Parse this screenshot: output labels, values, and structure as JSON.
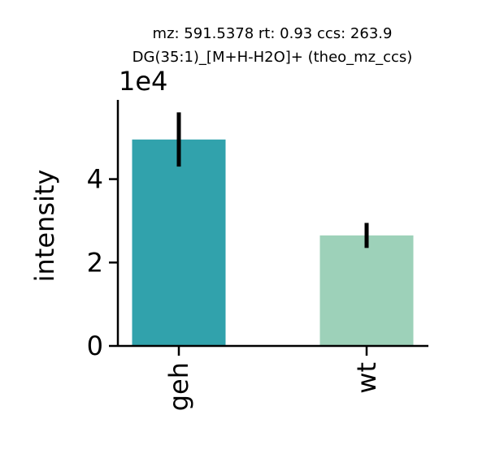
{
  "chart_data": {
    "type": "bar",
    "title_line1": "mz: 591.5378 rt: 0.93 ccs: 263.9",
    "title_line2": "DG(35:1)_[M+H-H2O]+ (theo_mz_ccs)",
    "xlabel": "",
    "ylabel": "intensity",
    "y_offset_label": "1e4",
    "categories": [
      "geh",
      "wt"
    ],
    "values": [
      49500,
      26500
    ],
    "error_low": [
      43000,
      23500
    ],
    "error_high": [
      56000,
      29500
    ],
    "colors": [
      "#31a2ac",
      "#9dd1b9"
    ],
    "error_color": "#000000",
    "ylim": [
      0,
      59000
    ],
    "yticks": [
      0,
      20000,
      40000
    ],
    "ytick_labels": [
      "0",
      "2",
      "4"
    ],
    "grid": false,
    "legend": "none"
  }
}
